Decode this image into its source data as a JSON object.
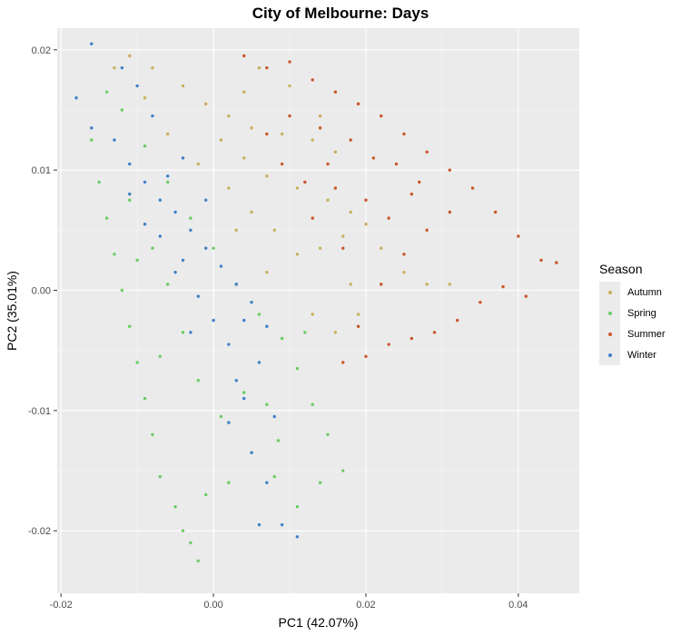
{
  "chart_data": {
    "type": "scatter",
    "title": "City of Melbourne: Days",
    "xlabel": "PC1 (42.07%)",
    "ylabel": "PC2 (35.01%)",
    "xlim": [
      -0.0205,
      0.048
    ],
    "ylim": [
      -0.0252,
      0.0218
    ],
    "x_ticks": [
      -0.02,
      0.0,
      0.02,
      0.04
    ],
    "x_tick_labels": [
      "-0.02",
      "0.00",
      "0.02",
      "0.04"
    ],
    "y_ticks": [
      -0.02,
      -0.01,
      0.0,
      0.01,
      0.02
    ],
    "y_tick_labels": [
      "-0.02",
      "-0.01",
      "0.00",
      "0.01",
      "0.02"
    ],
    "grid": true,
    "legend_position": "right",
    "legend_title": "Season",
    "series": [
      {
        "name": "Autumn",
        "color": "#c9b05a",
        "points": [
          [
            -0.011,
            0.0195
          ],
          [
            -0.008,
            0.0185
          ],
          [
            -0.004,
            0.017
          ],
          [
            -0.001,
            0.0155
          ],
          [
            0.002,
            0.0145
          ],
          [
            0.005,
            0.0135
          ],
          [
            0.009,
            0.013
          ],
          [
            0.013,
            0.0125
          ],
          [
            0.016,
            0.0115
          ],
          [
            0.014,
            0.0145
          ],
          [
            0.01,
            0.017
          ],
          [
            0.006,
            0.0185
          ],
          [
            0.004,
            0.0165
          ],
          [
            0.001,
            0.0125
          ],
          [
            0.004,
            0.011
          ],
          [
            0.007,
            0.0095
          ],
          [
            0.011,
            0.0085
          ],
          [
            0.015,
            0.0075
          ],
          [
            0.018,
            0.0065
          ],
          [
            0.02,
            0.0055
          ],
          [
            0.017,
            0.0045
          ],
          [
            0.014,
            0.0035
          ],
          [
            0.011,
            0.003
          ],
          [
            0.008,
            0.005
          ],
          [
            0.005,
            0.0065
          ],
          [
            0.002,
            0.0085
          ],
          [
            -0.002,
            0.0105
          ],
          [
            -0.006,
            0.013
          ],
          [
            -0.009,
            0.016
          ],
          [
            -0.013,
            0.0185
          ],
          [
            0.013,
            -0.002
          ],
          [
            0.016,
            -0.0035
          ],
          [
            0.019,
            -0.002
          ],
          [
            0.018,
            0.0005
          ],
          [
            0.022,
            0.0035
          ],
          [
            0.025,
            0.0015
          ],
          [
            0.028,
            0.0005
          ],
          [
            0.031,
            0.0005
          ],
          [
            0.003,
            0.005
          ],
          [
            0.007,
            0.0015
          ]
        ]
      },
      {
        "name": "Spring",
        "color": "#6ccc64",
        "points": [
          [
            -0.016,
            0.0125
          ],
          [
            -0.015,
            0.009
          ],
          [
            -0.014,
            0.006
          ],
          [
            -0.013,
            0.003
          ],
          [
            -0.012,
            0.0
          ],
          [
            -0.011,
            -0.003
          ],
          [
            -0.01,
            -0.006
          ],
          [
            -0.009,
            -0.009
          ],
          [
            -0.008,
            -0.012
          ],
          [
            -0.007,
            -0.0155
          ],
          [
            -0.005,
            -0.018
          ],
          [
            -0.003,
            -0.021
          ],
          [
            -0.002,
            -0.0225
          ],
          [
            -0.004,
            -0.02
          ],
          [
            -0.001,
            -0.017
          ],
          [
            0.002,
            -0.016
          ],
          [
            0.005,
            -0.0135
          ],
          [
            0.008,
            -0.0155
          ],
          [
            0.011,
            -0.018
          ],
          [
            0.014,
            -0.016
          ],
          [
            0.017,
            -0.015
          ],
          [
            0.015,
            -0.012
          ],
          [
            0.013,
            -0.0095
          ],
          [
            0.011,
            -0.0065
          ],
          [
            0.009,
            -0.004
          ],
          [
            0.006,
            -0.002
          ],
          [
            0.003,
            0.0005
          ],
          [
            0.0,
            0.0035
          ],
          [
            -0.003,
            0.006
          ],
          [
            -0.006,
            0.009
          ],
          [
            -0.009,
            0.012
          ],
          [
            -0.012,
            0.015
          ],
          [
            -0.014,
            0.0165
          ],
          [
            -0.011,
            0.0075
          ],
          [
            -0.008,
            0.0035
          ],
          [
            -0.006,
            0.0005
          ],
          [
            -0.004,
            -0.0035
          ],
          [
            -0.002,
            -0.0075
          ],
          [
            0.001,
            -0.0105
          ],
          [
            0.004,
            -0.0085
          ],
          [
            0.007,
            -0.0095
          ],
          [
            -0.007,
            -0.0055
          ],
          [
            -0.01,
            0.0025
          ],
          [
            0.012,
            -0.0035
          ],
          [
            0.0085,
            -0.0125
          ]
        ]
      },
      {
        "name": "Summer",
        "color": "#cc5529",
        "points": [
          [
            0.004,
            0.0195
          ],
          [
            0.007,
            0.0185
          ],
          [
            0.01,
            0.019
          ],
          [
            0.013,
            0.0175
          ],
          [
            0.016,
            0.0165
          ],
          [
            0.019,
            0.0155
          ],
          [
            0.022,
            0.0145
          ],
          [
            0.025,
            0.013
          ],
          [
            0.028,
            0.0115
          ],
          [
            0.031,
            0.01
          ],
          [
            0.034,
            0.0085
          ],
          [
            0.037,
            0.0065
          ],
          [
            0.04,
            0.0045
          ],
          [
            0.043,
            0.0025
          ],
          [
            0.045,
            0.0023
          ],
          [
            0.041,
            -0.0005
          ],
          [
            0.038,
            0.0003
          ],
          [
            0.035,
            -0.001
          ],
          [
            0.032,
            -0.0025
          ],
          [
            0.029,
            -0.0035
          ],
          [
            0.026,
            -0.004
          ],
          [
            0.023,
            -0.0045
          ],
          [
            0.02,
            -0.0055
          ],
          [
            0.017,
            -0.006
          ],
          [
            0.019,
            -0.003
          ],
          [
            0.022,
            0.0005
          ],
          [
            0.025,
            0.003
          ],
          [
            0.028,
            0.005
          ],
          [
            0.031,
            0.0065
          ],
          [
            0.027,
            0.009
          ],
          [
            0.024,
            0.0105
          ],
          [
            0.021,
            0.011
          ],
          [
            0.018,
            0.0125
          ],
          [
            0.015,
            0.0105
          ],
          [
            0.012,
            0.009
          ],
          [
            0.009,
            0.0105
          ],
          [
            0.007,
            0.013
          ],
          [
            0.01,
            0.0145
          ],
          [
            0.014,
            0.0135
          ],
          [
            0.016,
            0.0085
          ],
          [
            0.013,
            0.006
          ],
          [
            0.017,
            0.0035
          ],
          [
            0.02,
            0.0075
          ],
          [
            0.023,
            0.006
          ],
          [
            0.026,
            0.008
          ]
        ]
      },
      {
        "name": "Winter",
        "color": "#3f80c9",
        "points": [
          [
            -0.016,
            0.0205
          ],
          [
            -0.018,
            0.016
          ],
          [
            -0.016,
            0.0135
          ],
          [
            -0.013,
            0.0125
          ],
          [
            -0.011,
            0.0105
          ],
          [
            -0.009,
            0.009
          ],
          [
            -0.007,
            0.0075
          ],
          [
            -0.005,
            0.0065
          ],
          [
            -0.003,
            0.005
          ],
          [
            -0.001,
            0.0035
          ],
          [
            0.001,
            0.002
          ],
          [
            0.003,
            0.0005
          ],
          [
            0.005,
            -0.001
          ],
          [
            0.007,
            -0.003
          ],
          [
            0.006,
            -0.006
          ],
          [
            0.004,
            -0.009
          ],
          [
            0.002,
            -0.011
          ],
          [
            0.007,
            -0.016
          ],
          [
            0.009,
            -0.0195
          ],
          [
            0.011,
            -0.0205
          ],
          [
            0.006,
            -0.0195
          ],
          [
            -0.007,
            0.0045
          ],
          [
            -0.004,
            0.0025
          ],
          [
            -0.002,
            -0.0005
          ],
          [
            0.0,
            -0.0025
          ],
          [
            0.002,
            -0.0045
          ],
          [
            -0.009,
            0.0055
          ],
          [
            -0.006,
            0.0095
          ],
          [
            -0.004,
            0.011
          ],
          [
            -0.008,
            0.0145
          ],
          [
            -0.01,
            0.017
          ],
          [
            -0.012,
            0.0185
          ],
          [
            -0.005,
            0.0015
          ],
          [
            -0.003,
            -0.0035
          ],
          [
            0.004,
            -0.0025
          ],
          [
            0.003,
            -0.0075
          ],
          [
            0.005,
            -0.0135
          ],
          [
            0.008,
            -0.0105
          ],
          [
            -0.011,
            0.008
          ],
          [
            -0.001,
            0.0075
          ]
        ]
      }
    ]
  }
}
